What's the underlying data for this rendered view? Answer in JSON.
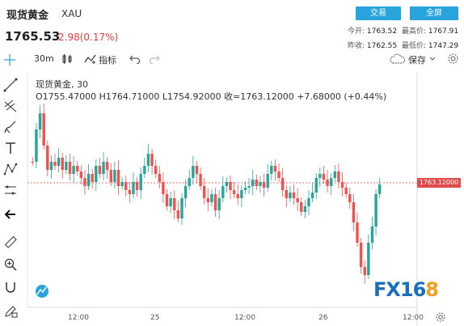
{
  "header": {
    "title": "现货黄金",
    "symbol": "XAU",
    "price": "1765.53",
    "change": "2.98(0.17%)",
    "trade_label": "交易",
    "fullscreen_label": "全屏",
    "stats": [
      {
        "label": "今开:",
        "value": "1763.52"
      },
      {
        "label": "最高价:",
        "value": "1767.91"
      },
      {
        "label": "昨收:",
        "value": "1762.55"
      },
      {
        "label": "最低价:",
        "value": "1747.29"
      }
    ]
  },
  "toolbar": {
    "interval": "30m",
    "indicator_label": "指标",
    "save_label": "保存"
  },
  "legend": {
    "series": "现货黄金, 30",
    "ohlc": "O1755.47000  H1764.71000  L1754.92000  收=1763.12000  +7.68000 (+0.44%)"
  },
  "chart_data": {
    "type": "candlestick",
    "x_ticks": [
      "12:00",
      "25",
      "12:00",
      "26",
      "12:00"
    ],
    "last_price": "1763.12000",
    "watermark": "FX168"
  },
  "colors": {
    "up": "#26a69a",
    "down": "#ef5350",
    "accent": "#29a3dc"
  }
}
